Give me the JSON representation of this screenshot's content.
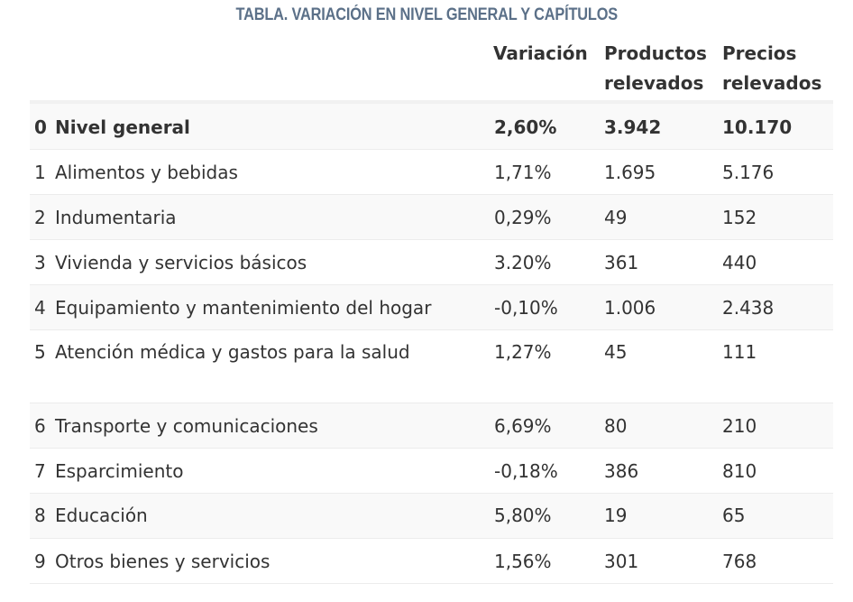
{
  "title": "TABLA. VARIACIÓN EN NIVEL GENERAL Y CAPÍTULOS",
  "columns": {
    "variacion": "Variación",
    "productos_line1": "Productos",
    "productos_line2": "relevados",
    "precios_line1": "Precios",
    "precios_line2": "relevados"
  },
  "rows": [
    {
      "num": "0",
      "name": "Nivel general",
      "variacion": "2,60%",
      "productos": "3.942",
      "precios": "10.170"
    },
    {
      "num": "1",
      "name": "Alimentos y bebidas",
      "variacion": "1,71%",
      "productos": "1.695",
      "precios": "5.176"
    },
    {
      "num": "2",
      "name": "Indumentaria",
      "variacion": "0,29%",
      "productos": "49",
      "precios": "152"
    },
    {
      "num": "3",
      "name": "Vivienda y servicios básicos",
      "variacion": "3.20%",
      "productos": "361",
      "precios": "440"
    },
    {
      "num": "4",
      "name": "Equipamiento y mantenimiento del hogar",
      "variacion": "-0,10%",
      "productos": "1.006",
      "precios": "2.438"
    },
    {
      "num": "5",
      "name": "Atención médica y gastos para la salud",
      "variacion": "1,27%",
      "productos": "45",
      "precios": "111"
    },
    {
      "num": "6",
      "name": "Transporte y comunicaciones",
      "variacion": "6,69%",
      "productos": "80",
      "precios": "210"
    },
    {
      "num": "7",
      "name": "Esparcimiento",
      "variacion": "-0,18%",
      "productos": "386",
      "precios": "810"
    },
    {
      "num": "8",
      "name": "Educación",
      "variacion": "5,80%",
      "productos": "19",
      "precios": "65"
    },
    {
      "num": "9",
      "name": "Otros bienes y servicios",
      "variacion": "1,56%",
      "productos": "301",
      "precios": "768"
    }
  ]
}
